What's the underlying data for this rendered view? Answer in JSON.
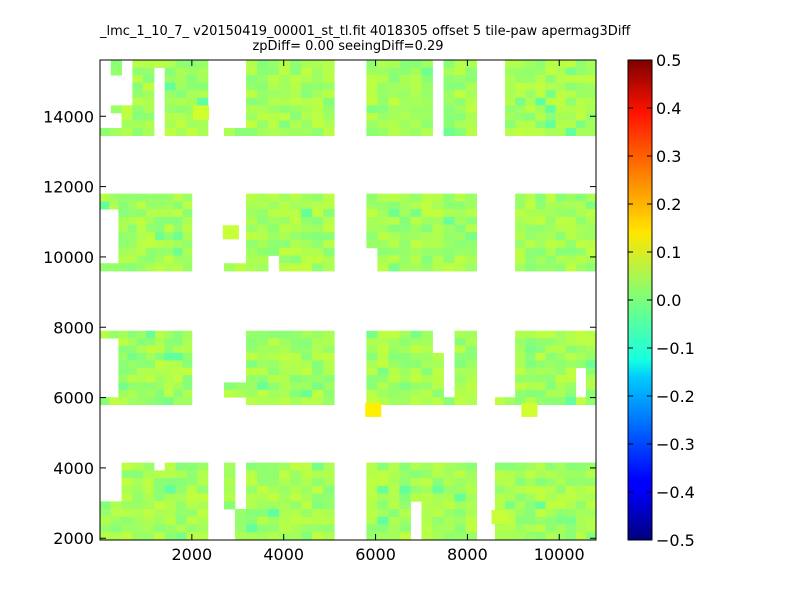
{
  "chart_data": {
    "type": "heatmap",
    "title_line1": "_lmc_1_10_7_ v20150419_00001_st_tl.fit 4018305 offset 5 tile-paw apermag3Diff",
    "title_line2": "zpDiff= 0.00 seeingDiff=0.29",
    "xlim": [
      0,
      10800
    ],
    "ylim": [
      1950,
      15600
    ],
    "x_ticks": [
      2000,
      4000,
      6000,
      8000,
      10000
    ],
    "x_tick_labels": [
      "2000",
      "4000",
      "6000",
      "8000",
      "10000"
    ],
    "y_ticks": [
      2000,
      4000,
      6000,
      8000,
      10000,
      12000,
      14000
    ],
    "y_tick_labels": [
      "2000",
      "4000",
      "6000",
      "8000",
      "10000",
      "12000",
      "14000"
    ],
    "colorbar": {
      "colormap": "jet",
      "vmin": -0.5,
      "vmax": 0.5,
      "ticks": [
        0.5,
        0.4,
        0.3,
        0.2,
        0.1,
        0.0,
        -0.1,
        -0.2,
        -0.3,
        -0.4,
        -0.5
      ],
      "tick_labels": [
        "0.5",
        "0.4",
        "0.3",
        "0.2",
        "0.1",
        "0.0",
        "−0.1",
        "−0.2",
        "−0.3",
        "−0.4",
        "−0.5"
      ]
    },
    "blocks": [
      {
        "x0": 0,
        "x1": 2350,
        "y0": 1950,
        "y1": 4150,
        "missing": [
          [
            0,
            0
          ],
          [
            0,
            1
          ],
          [
            0,
            2
          ],
          [
            0,
            3
          ],
          [
            0,
            4
          ],
          [
            1,
            0
          ],
          [
            1,
            1
          ],
          [
            1,
            2
          ],
          [
            1,
            3
          ],
          [
            1,
            4
          ],
          [
            5,
            0
          ]
        ]
      },
      {
        "x0": 2700,
        "x1": 5100,
        "y0": 1950,
        "y1": 4150,
        "missing": [
          [
            1,
            0
          ],
          [
            1,
            1
          ],
          [
            1,
            2
          ],
          [
            1,
            3
          ],
          [
            1,
            4
          ],
          [
            1,
            5
          ],
          [
            0,
            6
          ],
          [
            0,
            7
          ],
          [
            0,
            8
          ],
          [
            0,
            9
          ],
          [
            0,
            10
          ]
        ]
      },
      {
        "x0": 5800,
        "x1": 8200,
        "y0": 1950,
        "y1": 4150,
        "missing": [
          [
            4,
            5
          ],
          [
            4,
            6
          ],
          [
            4,
            7
          ],
          [
            4,
            8
          ],
          [
            4,
            9
          ],
          [
            4,
            10
          ]
        ]
      },
      {
        "x0": 8600,
        "x1": 10800,
        "y0": 1950,
        "y1": 4150,
        "missing": []
      },
      {
        "x0": 0,
        "x1": 2000,
        "y0": 5800,
        "y1": 7900,
        "missing": [
          [
            0,
            1
          ],
          [
            0,
            2
          ],
          [
            0,
            3
          ],
          [
            0,
            4
          ],
          [
            0,
            5
          ],
          [
            0,
            6
          ],
          [
            0,
            7
          ],
          [
            0,
            8
          ],
          [
            1,
            1
          ],
          [
            1,
            2
          ],
          [
            1,
            3
          ],
          [
            1,
            4
          ],
          [
            1,
            5
          ],
          [
            1,
            6
          ],
          [
            1,
            7
          ],
          [
            1,
            8
          ]
        ]
      },
      {
        "x0": 2700,
        "x1": 5100,
        "y0": 5800,
        "y1": 7900,
        "missing": [
          [
            0,
            0
          ],
          [
            0,
            1
          ],
          [
            0,
            2
          ],
          [
            0,
            3
          ],
          [
            0,
            4
          ],
          [
            0,
            5
          ],
          [
            0,
            6
          ],
          [
            1,
            0
          ],
          [
            1,
            1
          ],
          [
            1,
            2
          ],
          [
            1,
            3
          ],
          [
            1,
            4
          ],
          [
            1,
            5
          ],
          [
            1,
            6
          ],
          [
            0,
            9
          ],
          [
            1,
            9
          ]
        ]
      },
      {
        "x0": 5800,
        "x1": 8200,
        "y0": 5800,
        "y1": 7900,
        "missing": [
          [
            6,
            0
          ],
          [
            6,
            1
          ],
          [
            6,
            2
          ],
          [
            7,
            0
          ],
          [
            7,
            1
          ],
          [
            7,
            2
          ],
          [
            7,
            3
          ],
          [
            7,
            4
          ],
          [
            7,
            5
          ],
          [
            7,
            6
          ],
          [
            7,
            7
          ],
          [
            7,
            8
          ]
        ]
      },
      {
        "x0": 8600,
        "x1": 10800,
        "y0": 5800,
        "y1": 7900,
        "missing": [
          [
            0,
            0
          ],
          [
            0,
            1
          ],
          [
            0,
            2
          ],
          [
            0,
            3
          ],
          [
            0,
            4
          ],
          [
            0,
            5
          ],
          [
            0,
            6
          ],
          [
            0,
            7
          ],
          [
            0,
            8
          ],
          [
            1,
            0
          ],
          [
            1,
            1
          ],
          [
            1,
            2
          ],
          [
            1,
            3
          ],
          [
            1,
            4
          ],
          [
            1,
            5
          ],
          [
            1,
            6
          ],
          [
            1,
            7
          ],
          [
            1,
            8
          ],
          [
            8,
            5
          ],
          [
            8,
            6
          ],
          [
            8,
            7
          ],
          [
            8,
            8
          ]
        ]
      },
      {
        "x0": 0,
        "x1": 2000,
        "y0": 9600,
        "y1": 11800,
        "missing": [
          [
            0,
            2
          ],
          [
            0,
            3
          ],
          [
            0,
            4
          ],
          [
            0,
            5
          ],
          [
            0,
            6
          ],
          [
            0,
            7
          ],
          [
            0,
            8
          ],
          [
            1,
            2
          ],
          [
            1,
            3
          ],
          [
            1,
            4
          ],
          [
            1,
            5
          ],
          [
            1,
            6
          ],
          [
            1,
            7
          ],
          [
            1,
            8
          ]
        ]
      },
      {
        "x0": 2700,
        "x1": 5100,
        "y0": 9600,
        "y1": 11800,
        "missing": [
          [
            0,
            0
          ],
          [
            0,
            1
          ],
          [
            0,
            2
          ],
          [
            0,
            3
          ],
          [
            0,
            4
          ],
          [
            0,
            5
          ],
          [
            0,
            6
          ],
          [
            0,
            7
          ],
          [
            0,
            8
          ],
          [
            1,
            0
          ],
          [
            1,
            1
          ],
          [
            1,
            2
          ],
          [
            1,
            3
          ],
          [
            1,
            4
          ],
          [
            1,
            5
          ],
          [
            1,
            6
          ],
          [
            1,
            7
          ],
          [
            1,
            8
          ],
          [
            4,
            8
          ],
          [
            4,
            9
          ]
        ]
      },
      {
        "x0": 5800,
        "x1": 8200,
        "y0": 9600,
        "y1": 11800,
        "missing": [
          [
            0,
            7
          ],
          [
            0,
            8
          ],
          [
            0,
            9
          ]
        ]
      },
      {
        "x0": 8600,
        "x1": 10800,
        "y0": 9600,
        "y1": 11800,
        "missing": [
          [
            0,
            0
          ],
          [
            0,
            1
          ],
          [
            0,
            2
          ],
          [
            0,
            3
          ],
          [
            1,
            0
          ],
          [
            1,
            1
          ],
          [
            1,
            2
          ],
          [
            1,
            3
          ],
          [
            0,
            4
          ],
          [
            0,
            5
          ],
          [
            0,
            6
          ],
          [
            0,
            7
          ],
          [
            0,
            8
          ],
          [
            0,
            9
          ],
          [
            1,
            4
          ],
          [
            1,
            5
          ],
          [
            1,
            6
          ],
          [
            1,
            7
          ],
          [
            1,
            8
          ],
          [
            1,
            9
          ]
        ]
      },
      {
        "x0": 0,
        "x1": 2350,
        "y0": 13450,
        "y1": 15600,
        "missing": [
          [
            0,
            0
          ],
          [
            0,
            1
          ],
          [
            0,
            2
          ],
          [
            0,
            3
          ],
          [
            0,
            4
          ],
          [
            0,
            5
          ],
          [
            0,
            6
          ],
          [
            1,
            2
          ],
          [
            1,
            3
          ],
          [
            1,
            4
          ],
          [
            1,
            5
          ],
          [
            2,
            0
          ],
          [
            2,
            1
          ],
          [
            2,
            2
          ],
          [
            2,
            3
          ],
          [
            2,
            4
          ],
          [
            2,
            5
          ],
          [
            0,
            7
          ],
          [
            0,
            8
          ],
          [
            1,
            7
          ],
          [
            1,
            8
          ],
          [
            5,
            1
          ],
          [
            5,
            2
          ],
          [
            5,
            3
          ],
          [
            5,
            4
          ],
          [
            5,
            5
          ],
          [
            5,
            6
          ],
          [
            5,
            7
          ],
          [
            5,
            8
          ],
          [
            5,
            9
          ]
        ]
      },
      {
        "x0": 2700,
        "x1": 5100,
        "y0": 13450,
        "y1": 15600,
        "missing": [
          [
            0,
            0
          ],
          [
            0,
            1
          ],
          [
            0,
            2
          ],
          [
            0,
            3
          ],
          [
            0,
            4
          ],
          [
            0,
            5
          ],
          [
            0,
            6
          ],
          [
            0,
            7
          ],
          [
            0,
            8
          ],
          [
            1,
            0
          ],
          [
            1,
            1
          ],
          [
            1,
            2
          ],
          [
            1,
            3
          ],
          [
            1,
            4
          ],
          [
            1,
            5
          ],
          [
            1,
            6
          ],
          [
            1,
            7
          ],
          [
            1,
            8
          ]
        ]
      },
      {
        "x0": 5800,
        "x1": 8200,
        "y0": 13450,
        "y1": 15600,
        "missing": [
          [
            6,
            0
          ],
          [
            6,
            1
          ],
          [
            6,
            2
          ],
          [
            6,
            3
          ],
          [
            6,
            4
          ],
          [
            6,
            5
          ],
          [
            6,
            6
          ],
          [
            6,
            7
          ],
          [
            6,
            8
          ],
          [
            6,
            9
          ]
        ]
      },
      {
        "x0": 8600,
        "x1": 10800,
        "y0": 13450,
        "y1": 15600,
        "missing": [
          [
            0,
            0
          ],
          [
            0,
            1
          ],
          [
            0,
            2
          ],
          [
            0,
            3
          ],
          [
            0,
            4
          ],
          [
            0,
            5
          ],
          [
            0,
            6
          ],
          [
            0,
            7
          ],
          [
            0,
            8
          ],
          [
            0,
            9
          ]
        ]
      }
    ],
    "outliers": [
      {
        "x": 5950,
        "y": 5650,
        "value": 0.14
      },
      {
        "x": 9350,
        "y": 5650,
        "value": 0.08
      },
      {
        "x": 2200,
        "y": 14100,
        "value": 0.08
      },
      {
        "x": 2850,
        "y": 10700,
        "value": 0.07
      },
      {
        "x": 8700,
        "y": 2600,
        "value": 0.07
      }
    ]
  }
}
